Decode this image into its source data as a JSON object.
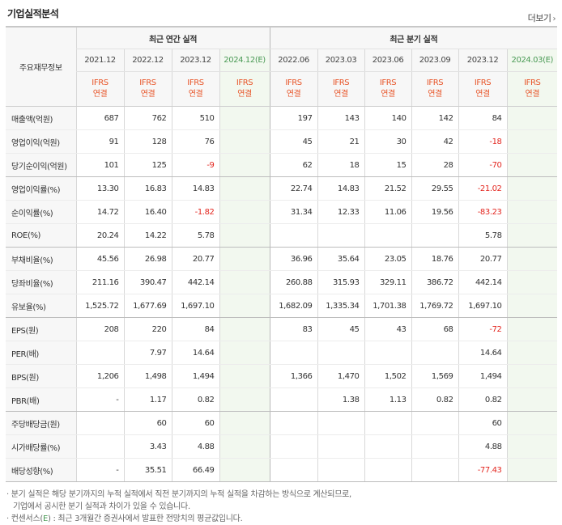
{
  "section": {
    "title": "기업실적분석",
    "more_label": "더보기"
  },
  "header": {
    "row_label": "주요재무정보",
    "annual_group": "최근 연간 실적",
    "quarter_group": "최근 분기 실적",
    "annual_periods": [
      "2021.12",
      "2022.12",
      "2023.12",
      "2024.12(E)"
    ],
    "quarter_periods": [
      "2022.06",
      "2023.03",
      "2023.06",
      "2023.09",
      "2023.12",
      "2024.03(E)"
    ],
    "ifrs_top": "IFRS",
    "ifrs_bottom": "연결"
  },
  "rows": [
    {
      "label": "매출액(억원)",
      "annual": [
        "687",
        "762",
        "510",
        ""
      ],
      "quarter": [
        "197",
        "143",
        "140",
        "142",
        "84",
        ""
      ]
    },
    {
      "label": "영업이익(억원)",
      "annual": [
        "91",
        "128",
        "76",
        ""
      ],
      "quarter": [
        "45",
        "21",
        "30",
        "42",
        "-18",
        ""
      ]
    },
    {
      "label": "당기순이익(억원)",
      "annual": [
        "101",
        "125",
        "-9",
        ""
      ],
      "quarter": [
        "62",
        "18",
        "15",
        "28",
        "-70",
        ""
      ]
    },
    {
      "label": "영업이익률(%)",
      "annual": [
        "13.30",
        "16.83",
        "14.83",
        ""
      ],
      "quarter": [
        "22.74",
        "14.83",
        "21.52",
        "29.55",
        "-21.02",
        ""
      ]
    },
    {
      "label": "순이익률(%)",
      "annual": [
        "14.72",
        "16.40",
        "-1.82",
        ""
      ],
      "quarter": [
        "31.34",
        "12.33",
        "11.06",
        "19.56",
        "-83.23",
        ""
      ]
    },
    {
      "label": "ROE(%)",
      "annual": [
        "20.24",
        "14.22",
        "5.78",
        ""
      ],
      "quarter": [
        "",
        "",
        "",
        "",
        "5.78",
        ""
      ]
    },
    {
      "label": "부채비율(%)",
      "annual": [
        "45.56",
        "26.98",
        "20.77",
        ""
      ],
      "quarter": [
        "36.96",
        "35.64",
        "23.05",
        "18.76",
        "20.77",
        ""
      ]
    },
    {
      "label": "당좌비율(%)",
      "annual": [
        "211.16",
        "390.47",
        "442.14",
        ""
      ],
      "quarter": [
        "260.88",
        "315.93",
        "329.11",
        "386.72",
        "442.14",
        ""
      ]
    },
    {
      "label": "유보율(%)",
      "annual": [
        "1,525.72",
        "1,677.69",
        "1,697.10",
        ""
      ],
      "quarter": [
        "1,682.09",
        "1,335.34",
        "1,701.38",
        "1,769.72",
        "1,697.10",
        ""
      ]
    },
    {
      "label": "EPS(원)",
      "annual": [
        "208",
        "220",
        "84",
        ""
      ],
      "quarter": [
        "83",
        "45",
        "43",
        "68",
        "-72",
        ""
      ]
    },
    {
      "label": "PER(배)",
      "annual": [
        "",
        "7.97",
        "14.64",
        ""
      ],
      "quarter": [
        "",
        "",
        "",
        "",
        "14.64",
        ""
      ]
    },
    {
      "label": "BPS(원)",
      "annual": [
        "1,206",
        "1,498",
        "1,494",
        ""
      ],
      "quarter": [
        "1,366",
        "1,470",
        "1,502",
        "1,569",
        "1,494",
        ""
      ]
    },
    {
      "label": "PBR(배)",
      "annual": [
        "-",
        "1.17",
        "0.82",
        ""
      ],
      "quarter": [
        "",
        "1.38",
        "1.13",
        "0.82",
        "0.82",
        ""
      ]
    },
    {
      "label": "주당배당금(원)",
      "annual": [
        "",
        "60",
        "60",
        ""
      ],
      "quarter": [
        "",
        "",
        "",
        "",
        "60",
        ""
      ]
    },
    {
      "label": "시가배당률(%)",
      "annual": [
        "",
        "3.43",
        "4.88",
        ""
      ],
      "quarter": [
        "",
        "",
        "",
        "",
        "4.88",
        ""
      ]
    },
    {
      "label": "배당성향(%)",
      "annual": [
        "-",
        "35.51",
        "66.49",
        ""
      ],
      "quarter": [
        "",
        "",
        "",
        "",
        "-77.43",
        ""
      ]
    }
  ],
  "notes": {
    "line1": "· 분기 실적은 해당 분기까지의 누적 실적에서 직전 분기까지의 누적 실적을 차감하는 방식으로 계산되므로,",
    "line2": "기업에서 공시한 분기 실적과 차이가 있을 수 있습니다.",
    "line3_prefix": "· 컨센서스(",
    "line3_e": "E",
    "line3_suffix": ") : 최근 3개월간 증권사에서 발표한 전망치의 평균값입니다."
  },
  "colors": {
    "negative": "#e3261f",
    "ifrs": "#e8562a",
    "estimate_bg": "#f2f8ef",
    "estimate_text": "#4a9a55"
  }
}
